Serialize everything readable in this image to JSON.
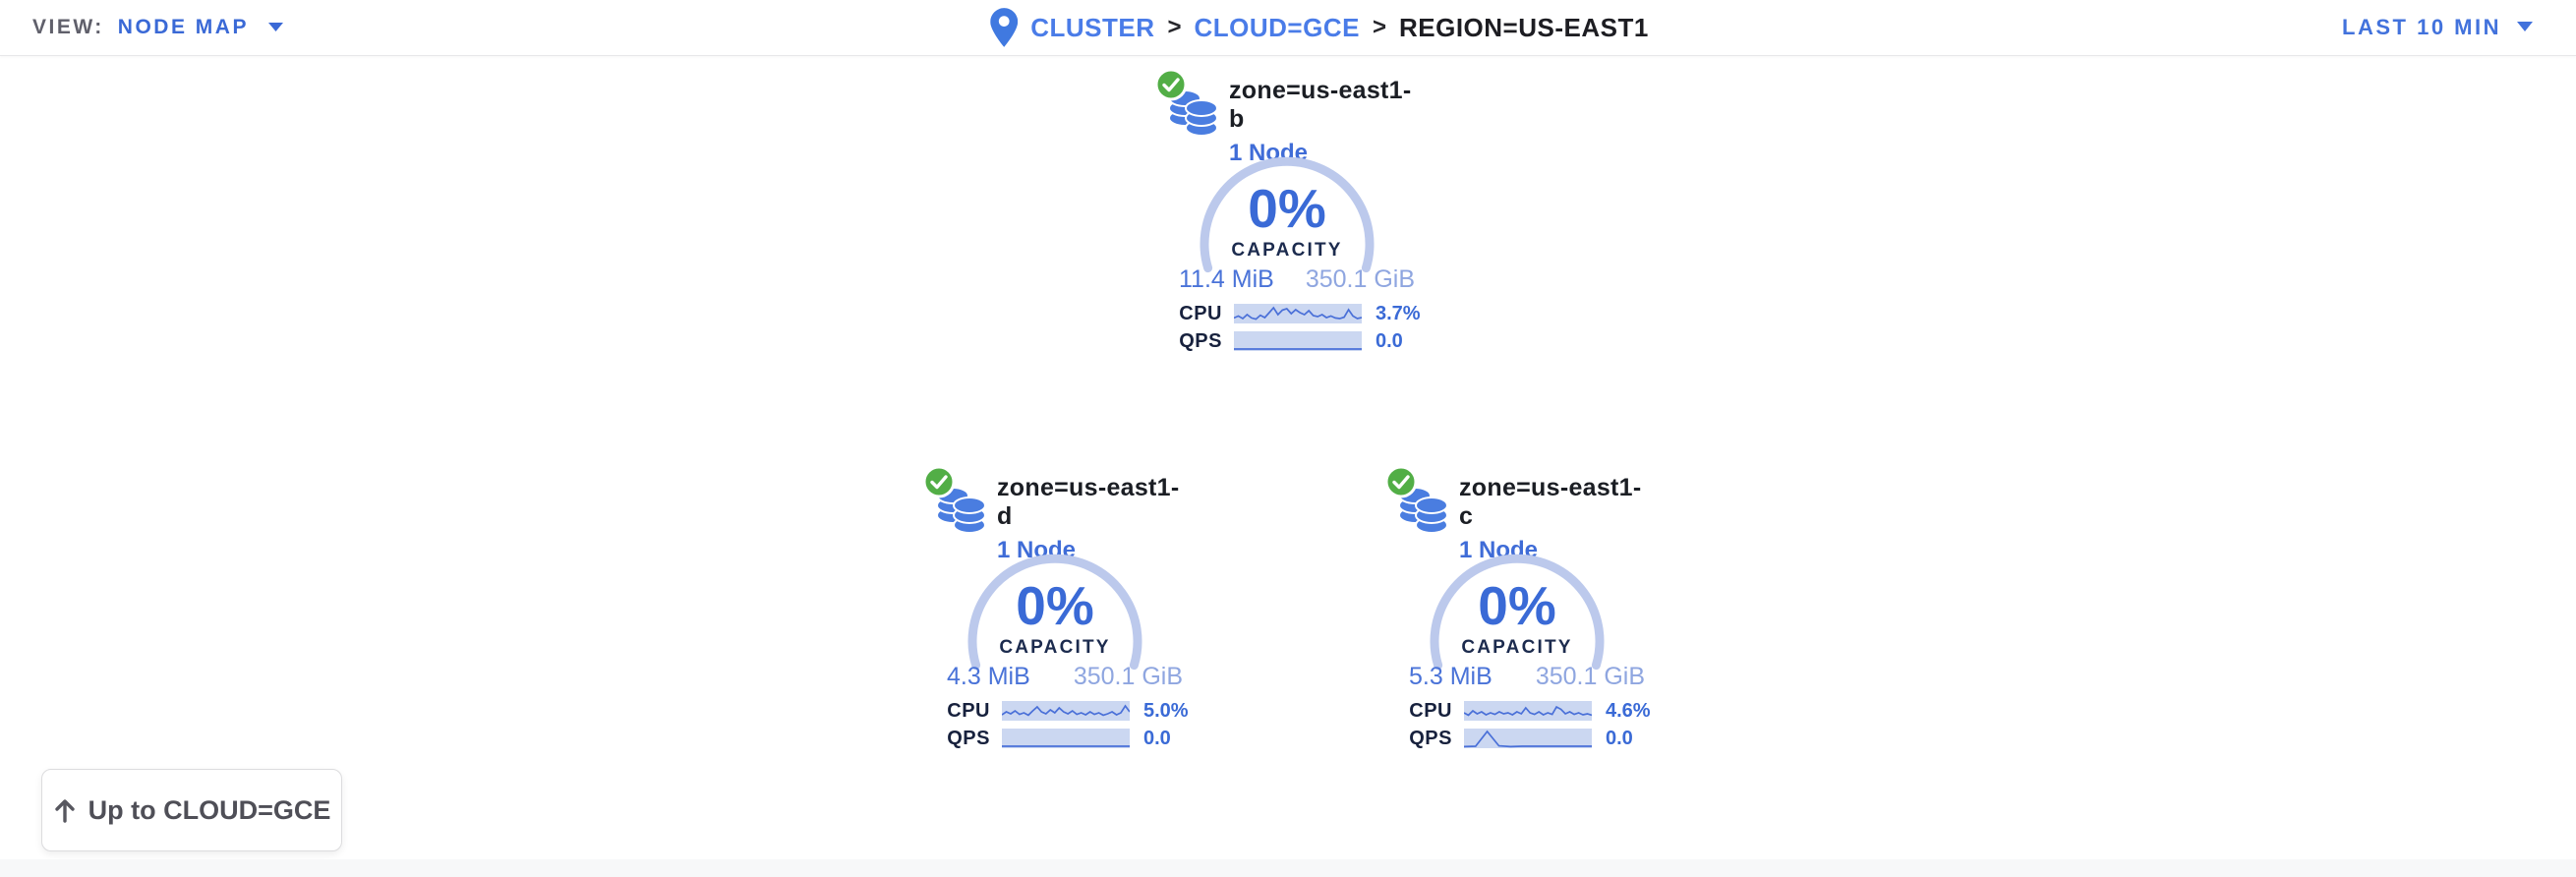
{
  "topbar": {
    "view_label": "VIEW:",
    "view_value": "NODE MAP",
    "breadcrumb": [
      {
        "label": "CLUSTER"
      },
      {
        "label": "CLOUD=GCE"
      },
      {
        "label": "REGION=US-EAST1"
      }
    ],
    "breadcrumb_separator": ">",
    "time_range": "LAST 10 MIN"
  },
  "zones": [
    {
      "title": "zone=us-east1-b",
      "subtitle": "1 Node",
      "status": "healthy",
      "capacity_pct": "0%",
      "capacity_label": "CAPACITY",
      "capacity_used": "11.4 MiB",
      "capacity_total": "350.1 GiB",
      "cpu_label": "CPU",
      "cpu_value": "3.7%",
      "qps_label": "QPS",
      "qps_value": "0.0",
      "cpu_spark": [
        0.72,
        0.62,
        0.75,
        0.55,
        0.72,
        0.78,
        0.58,
        0.7,
        0.45,
        0.2,
        0.55,
        0.32,
        0.25,
        0.5,
        0.3,
        0.45,
        0.55,
        0.35,
        0.6,
        0.65,
        0.55,
        0.7,
        0.62,
        0.72,
        0.75,
        0.68,
        0.3,
        0.62,
        0.75,
        0.7
      ],
      "qps_spark": [
        0.9,
        0.9,
        0.9,
        0.9,
        0.9,
        0.9,
        0.9,
        0.9,
        0.9,
        0.9
      ]
    },
    {
      "title": "zone=us-east1-d",
      "subtitle": "1 Node",
      "status": "healthy",
      "capacity_pct": "0%",
      "capacity_label": "CAPACITY",
      "capacity_used": "4.3 MiB",
      "capacity_total": "350.1 GiB",
      "cpu_label": "CPU",
      "cpu_value": "5.0%",
      "qps_label": "QPS",
      "qps_value": "0.0",
      "cpu_spark": [
        0.7,
        0.55,
        0.65,
        0.5,
        0.68,
        0.6,
        0.72,
        0.5,
        0.3,
        0.55,
        0.65,
        0.45,
        0.6,
        0.35,
        0.55,
        0.65,
        0.5,
        0.68,
        0.6,
        0.7,
        0.55,
        0.68,
        0.6,
        0.72,
        0.65,
        0.55,
        0.7,
        0.6,
        0.25,
        0.55
      ],
      "qps_spark": [
        0.9,
        0.9,
        0.9,
        0.9,
        0.9,
        0.9,
        0.9,
        0.9,
        0.9,
        0.9
      ]
    },
    {
      "title": "zone=us-east1-c",
      "subtitle": "1 Node",
      "status": "healthy",
      "capacity_pct": "0%",
      "capacity_label": "CAPACITY",
      "capacity_used": "5.3 MiB",
      "capacity_total": "350.1 GiB",
      "cpu_label": "CPU",
      "cpu_value": "4.6%",
      "qps_label": "QPS",
      "qps_value": "0.0",
      "cpu_spark": [
        0.6,
        0.72,
        0.5,
        0.65,
        0.55,
        0.7,
        0.6,
        0.68,
        0.55,
        0.65,
        0.6,
        0.7,
        0.55,
        0.65,
        0.35,
        0.6,
        0.68,
        0.55,
        0.7,
        0.6,
        0.68,
        0.3,
        0.42,
        0.65,
        0.55,
        0.68,
        0.6,
        0.7,
        0.65,
        0.72
      ],
      "qps_spark": [
        0.92,
        0.9,
        0.15,
        0.88,
        0.92,
        0.9,
        0.9,
        0.9,
        0.9,
        0.9,
        0.9,
        0.9
      ]
    }
  ],
  "up_button": {
    "label": "Up to CLOUD=GCE"
  },
  "colors": {
    "accent_blue": "#3a69d6",
    "link_blue": "#4a7ce8",
    "gauge_arc": "#bcc9ec",
    "spark_bg": "#cbd7f1",
    "spark_line": "#4a70d8",
    "capacity_used_blue": "#4a73d8",
    "capacity_total_blue": "#8fa6e0",
    "healthy_green": "#52ae46",
    "dark_text": "#1d1d22"
  }
}
